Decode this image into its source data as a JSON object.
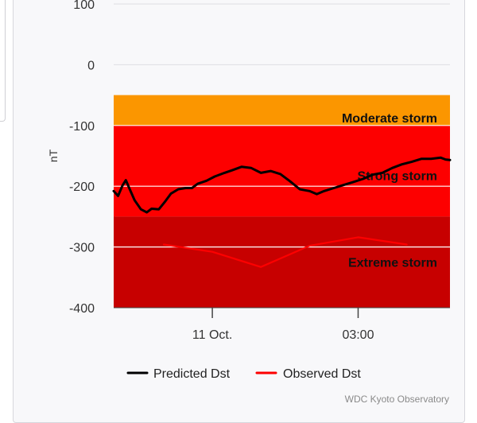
{
  "chart_data": {
    "type": "line",
    "title": "",
    "xlabel": "",
    "ylabel": "nT",
    "ylim": [
      -400,
      100
    ],
    "y_ticks": [
      100,
      0,
      -100,
      -200,
      -300,
      -400
    ],
    "x_ticks": [
      {
        "label": "11 Oct.",
        "hours": 0
      },
      {
        "label": "03:00",
        "hours": 3
      }
    ],
    "xlim_hours": [
      -2.03,
      4.89
    ],
    "bands": [
      {
        "label": "Moderate storm",
        "from": -50,
        "to": -100,
        "color": "#fb9600"
      },
      {
        "label": "Strong storm",
        "from": -100,
        "to": -250,
        "color": "#fd0000"
      },
      {
        "label": "Extreme storm",
        "from": -250,
        "to": -400,
        "color": "#c70000"
      }
    ],
    "series": [
      {
        "name": "Predicted Dst",
        "color": "#000000",
        "points": [
          [
            -2.03,
            -208
          ],
          [
            -1.94,
            -216
          ],
          [
            -1.85,
            -199
          ],
          [
            -1.78,
            -190
          ],
          [
            -1.7,
            -205
          ],
          [
            -1.6,
            -223
          ],
          [
            -1.47,
            -238
          ],
          [
            -1.35,
            -243
          ],
          [
            -1.25,
            -237
          ],
          [
            -1.1,
            -238
          ],
          [
            -0.98,
            -226
          ],
          [
            -0.85,
            -212
          ],
          [
            -0.7,
            -205
          ],
          [
            -0.55,
            -203
          ],
          [
            -0.42,
            -203
          ],
          [
            -0.3,
            -196
          ],
          [
            -0.12,
            -191
          ],
          [
            0.05,
            -184
          ],
          [
            0.25,
            -178
          ],
          [
            0.4,
            -174
          ],
          [
            0.6,
            -168
          ],
          [
            0.8,
            -170
          ],
          [
            1.0,
            -178
          ],
          [
            1.2,
            -175
          ],
          [
            1.4,
            -180
          ],
          [
            1.6,
            -192
          ],
          [
            1.8,
            -205
          ],
          [
            2.0,
            -208
          ],
          [
            2.15,
            -213
          ],
          [
            2.3,
            -208
          ],
          [
            2.5,
            -203
          ],
          [
            2.7,
            -198
          ],
          [
            2.9,
            -193
          ],
          [
            3.1,
            -188
          ],
          [
            3.3,
            -181
          ],
          [
            3.5,
            -178
          ],
          [
            3.7,
            -170
          ],
          [
            3.9,
            -164
          ],
          [
            4.1,
            -160
          ],
          [
            4.3,
            -155
          ],
          [
            4.5,
            -155
          ],
          [
            4.7,
            -153
          ],
          [
            4.8,
            -156
          ],
          [
            4.89,
            -157
          ]
        ]
      },
      {
        "name": "Observed Dst",
        "color": "#fd0000",
        "points": [
          [
            -1.0,
            -296
          ],
          [
            0.0,
            -308
          ],
          [
            1.0,
            -333
          ],
          [
            2.0,
            -298
          ],
          [
            3.0,
            -284
          ],
          [
            4.0,
            -296
          ]
        ]
      }
    ],
    "legend_position": "bottom",
    "grid": true
  },
  "credit": "WDC Kyoto Observatory"
}
